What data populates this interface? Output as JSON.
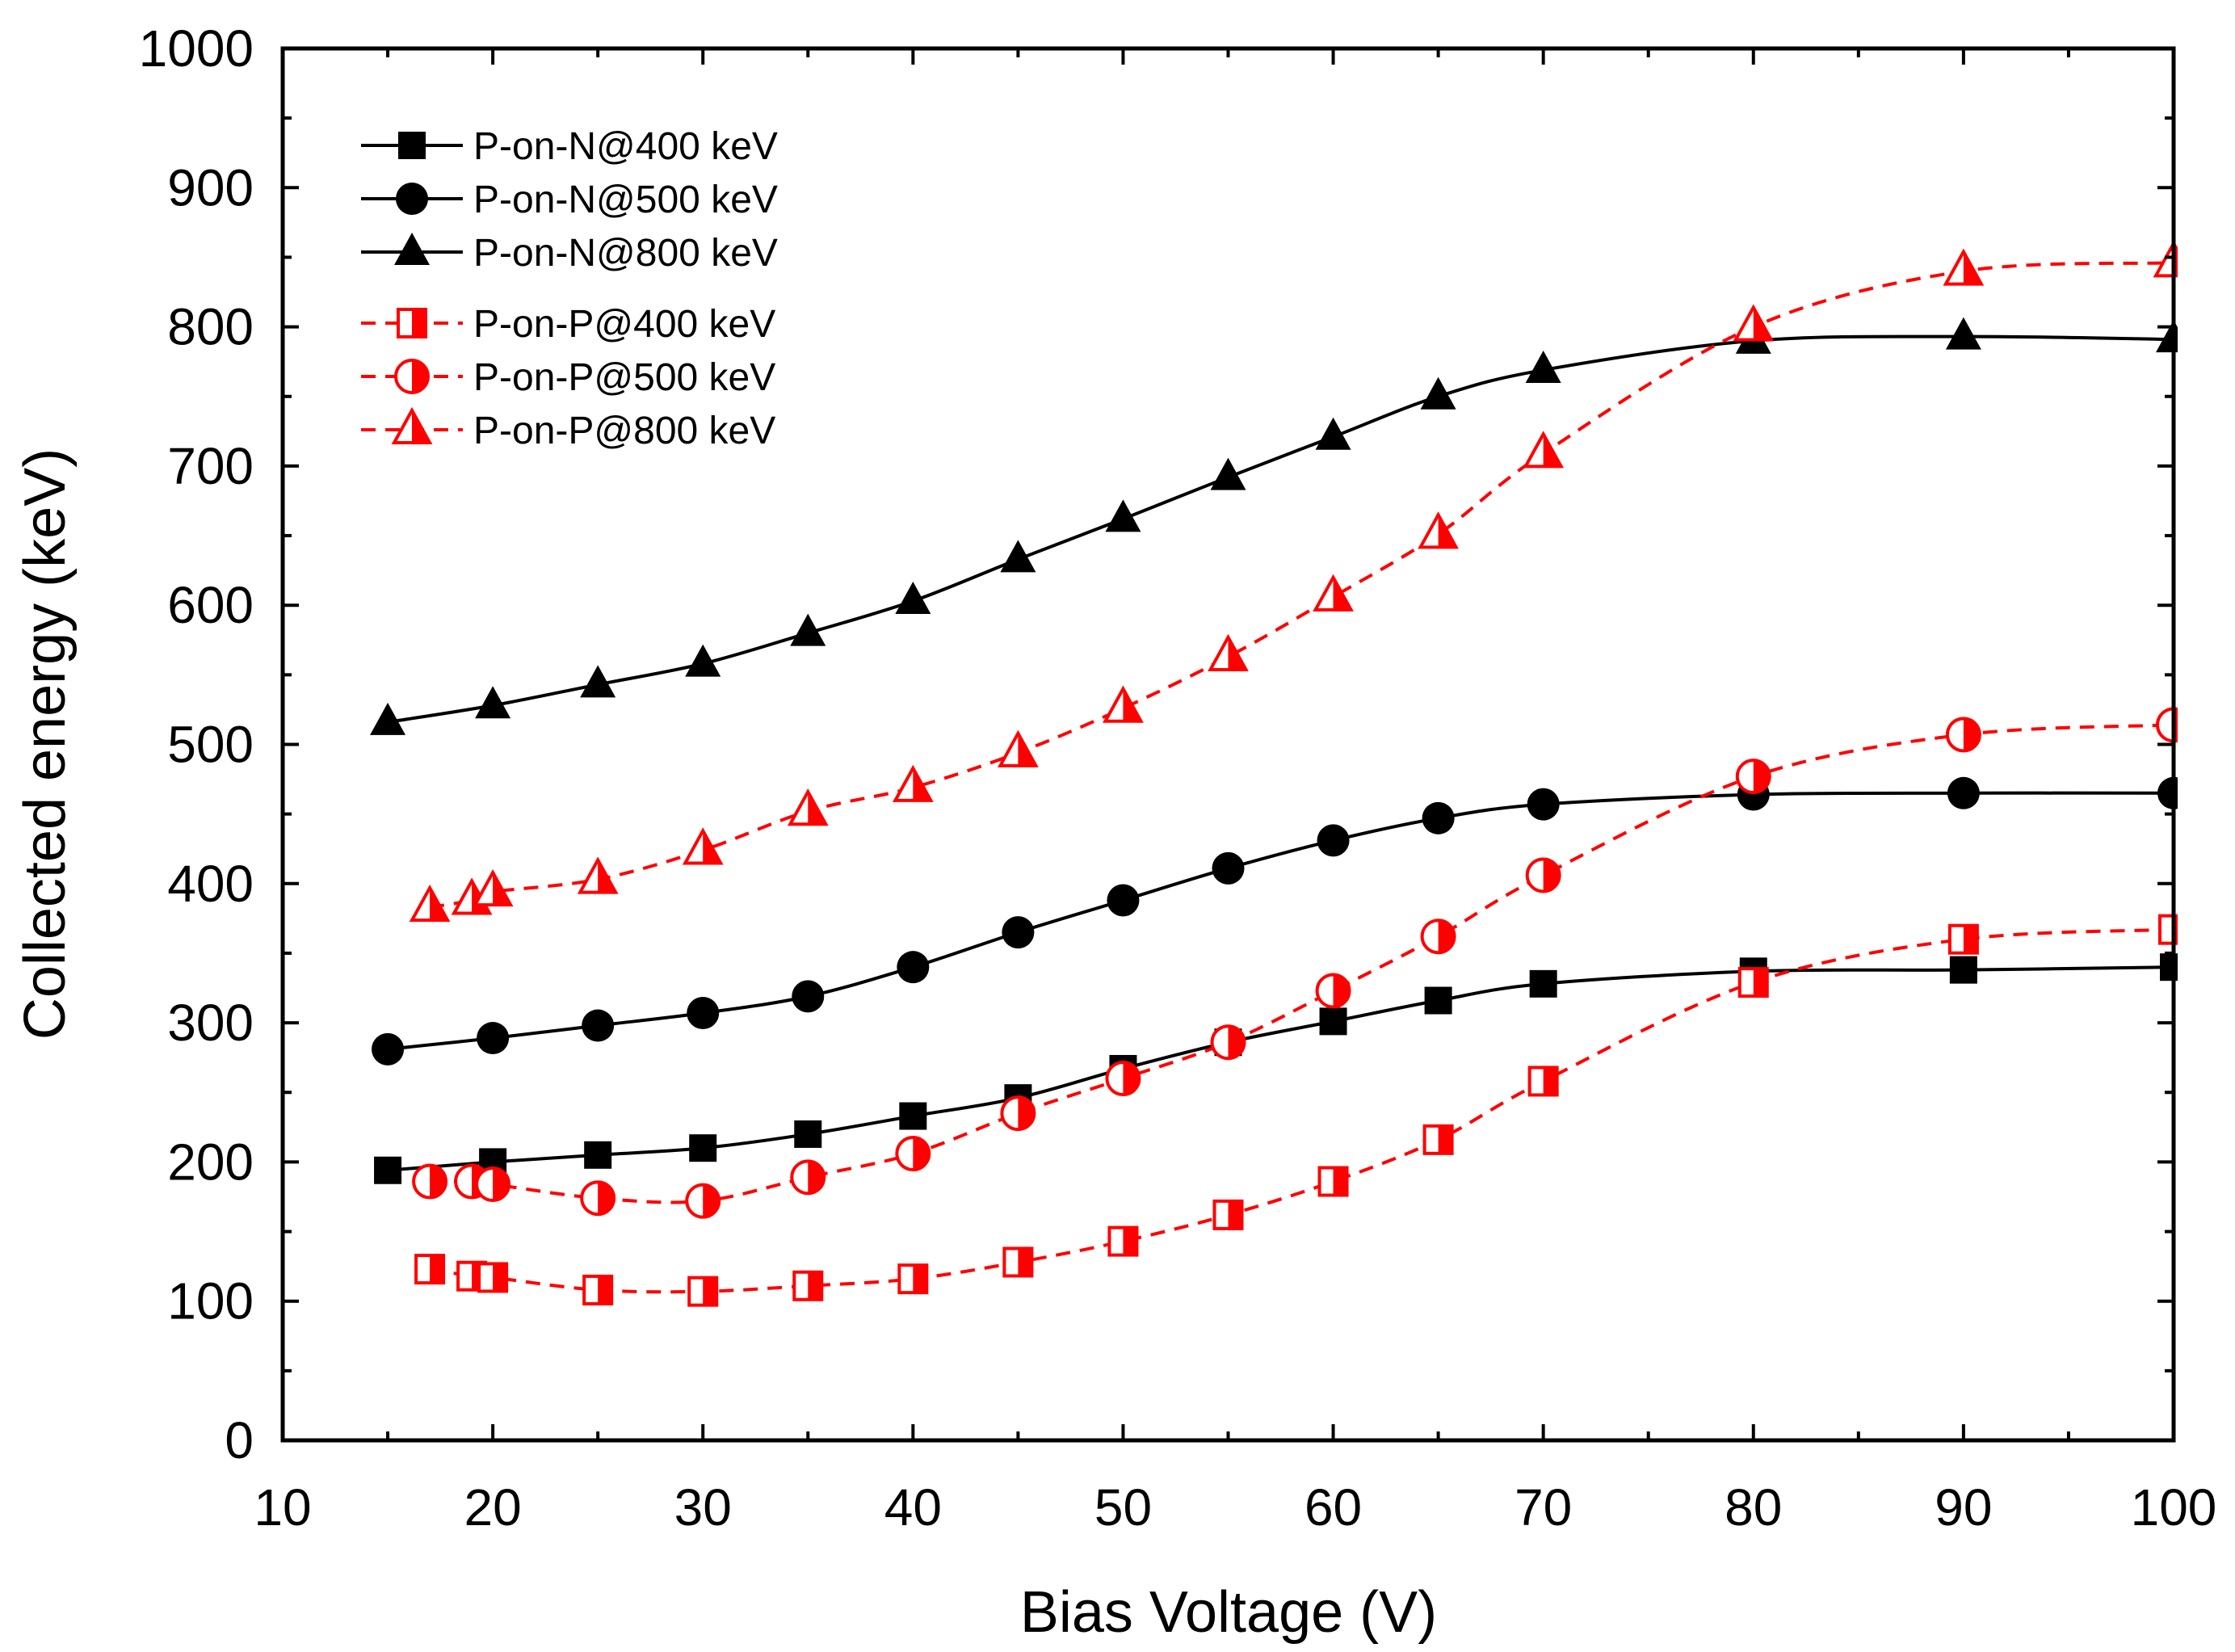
{
  "chart_data": {
    "type": "line",
    "title": "",
    "xlabel": "Bias Voltage (V)",
    "ylabel": "Collected energy (keV)",
    "xlim": [
      10,
      100
    ],
    "ylim": [
      0,
      1000
    ],
    "xticks": [
      10,
      20,
      30,
      40,
      50,
      60,
      70,
      80,
      90,
      100
    ],
    "yticks": [
      0,
      100,
      200,
      300,
      400,
      500,
      600,
      700,
      800,
      900,
      1000
    ],
    "xtick_labels": [
      "10",
      "20",
      "30",
      "40",
      "50",
      "60",
      "70",
      "80",
      "90",
      "100"
    ],
    "ytick_labels": [
      "0",
      "100",
      "200",
      "300",
      "400",
      "500",
      "600",
      "700",
      "800",
      "900",
      "1000"
    ],
    "legend_position": "top-left",
    "series": [
      {
        "name": "P-on-N@400 keV",
        "marker": "square",
        "fill": "solid",
        "color": "#000000",
        "line": "solid",
        "x": [
          15,
          20,
          25,
          30,
          35,
          40,
          45,
          50,
          55,
          60,
          65,
          70,
          80,
          90,
          100
        ],
        "y": [
          194,
          200,
          205,
          210,
          220,
          233,
          246,
          267,
          286,
          301,
          316,
          328,
          337,
          338,
          340
        ]
      },
      {
        "name": "P-on-N@500 keV",
        "marker": "circle",
        "fill": "solid",
        "color": "#000000",
        "line": "solid",
        "x": [
          15,
          20,
          25,
          30,
          35,
          40,
          45,
          50,
          55,
          60,
          65,
          70,
          80,
          90,
          100
        ],
        "y": [
          281,
          289,
          298,
          307,
          319,
          340,
          365,
          388,
          411,
          431,
          447,
          457,
          464,
          465,
          465
        ]
      },
      {
        "name": "P-on-N@800 keV",
        "marker": "triangle",
        "fill": "solid",
        "color": "#000000",
        "line": "solid",
        "x": [
          15,
          20,
          25,
          30,
          35,
          40,
          45,
          50,
          55,
          60,
          65,
          70,
          80,
          90,
          100
        ],
        "y": [
          516,
          528,
          543,
          558,
          580,
          603,
          633,
          662,
          692,
          721,
          750,
          769,
          790,
          793,
          791
        ]
      },
      {
        "name": "P-on-P@400 keV",
        "marker": "square",
        "fill": "half",
        "color": "#ff0000",
        "line": "dashed",
        "x": [
          17,
          19,
          20,
          25,
          30,
          35,
          40,
          45,
          50,
          55,
          60,
          65,
          70,
          80,
          90,
          100
        ],
        "y": [
          123,
          118,
          117,
          108,
          107,
          111,
          116,
          128,
          143,
          162,
          186,
          216,
          258,
          329,
          360,
          367
        ]
      },
      {
        "name": "P-on-P@500 keV",
        "marker": "circle",
        "fill": "half",
        "color": "#ff0000",
        "line": "dashed",
        "x": [
          17,
          19,
          20,
          25,
          30,
          35,
          40,
          45,
          50,
          55,
          60,
          65,
          70,
          80,
          90,
          100
        ],
        "y": [
          186,
          186,
          184,
          174,
          172,
          189,
          206,
          235,
          260,
          286,
          323,
          362,
          406,
          477,
          507,
          514
        ]
      },
      {
        "name": "P-on-P@800 keV",
        "marker": "triangle",
        "fill": "half",
        "color": "#ff0000",
        "line": "dashed",
        "x": [
          17,
          19,
          20,
          25,
          30,
          35,
          40,
          45,
          50,
          55,
          60,
          65,
          70,
          80,
          90,
          100
        ],
        "y": [
          383,
          388,
          394,
          403,
          424,
          452,
          469,
          494,
          526,
          563,
          606,
          651,
          709,
          800,
          840,
          846
        ]
      }
    ]
  }
}
